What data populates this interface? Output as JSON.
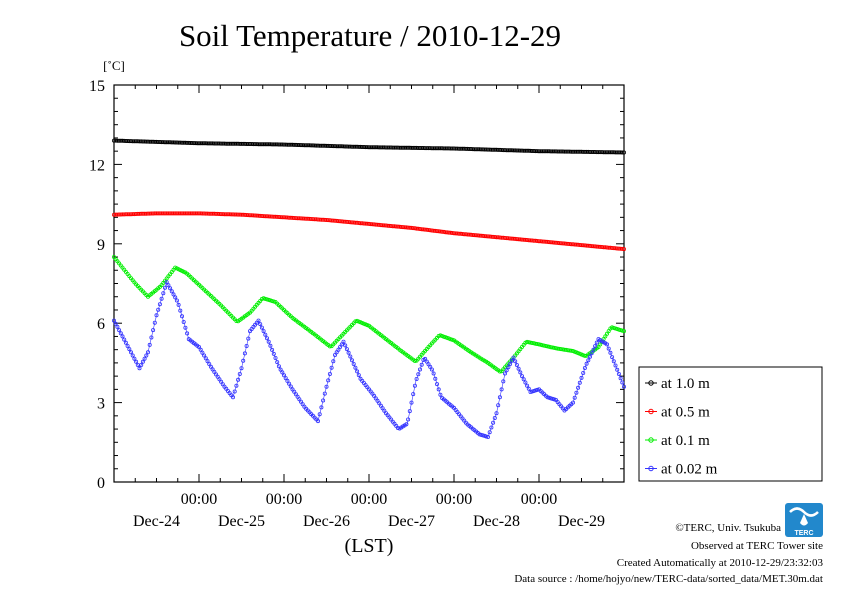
{
  "chart_data": {
    "type": "line",
    "title": "Soil Temperature / 2010-12-29",
    "ylabel": "[˚C]",
    "xlabel": "(LST)",
    "ylim": [
      0,
      15
    ],
    "y_ticks": [
      "0",
      "3",
      "6",
      "9",
      "12",
      "15"
    ],
    "xlim": [
      0,
      6
    ],
    "x_ticks": [
      {
        "x": 1,
        "time": "00:00",
        "date": "Dec-25"
      },
      {
        "x": 2,
        "time": "00:00",
        "date": "Dec-26"
      },
      {
        "x": 3,
        "time": "00:00",
        "date": "Dec-27"
      },
      {
        "x": 4,
        "time": "00:00",
        "date": "Dec-28"
      },
      {
        "x": 5,
        "time": "00:00",
        "date": "Dec-29"
      }
    ],
    "day_labels": [
      "Dec-24",
      "Dec-25",
      "Dec-26",
      "Dec-27",
      "Dec-28",
      "Dec-29"
    ],
    "grid": false,
    "legend_position": "bottom-right-outside",
    "series": [
      {
        "name": "at 1.0 m",
        "color": "#000000",
        "points": [
          [
            0,
            12.9
          ],
          [
            0.5,
            12.85
          ],
          [
            1,
            12.8
          ],
          [
            2,
            12.75
          ],
          [
            3,
            12.65
          ],
          [
            4,
            12.6
          ],
          [
            5,
            12.5
          ],
          [
            6,
            12.45
          ]
        ]
      },
      {
        "name": "at 0.5 m",
        "color": "#ff0000",
        "points": [
          [
            0,
            10.1
          ],
          [
            0.5,
            10.15
          ],
          [
            1,
            10.15
          ],
          [
            1.5,
            10.1
          ],
          [
            2,
            10.0
          ],
          [
            2.5,
            9.9
          ],
          [
            3,
            9.75
          ],
          [
            3.5,
            9.6
          ],
          [
            4,
            9.4
          ],
          [
            4.5,
            9.25
          ],
          [
            5,
            9.1
          ],
          [
            5.5,
            8.95
          ],
          [
            6,
            8.8
          ]
        ]
      },
      {
        "name": "at 0.1 m",
        "color": "#00ee00",
        "points": [
          [
            0,
            8.5
          ],
          [
            0.25,
            7.5
          ],
          [
            0.4,
            7.0
          ],
          [
            0.55,
            7.4
          ],
          [
            0.72,
            8.1
          ],
          [
            0.85,
            7.9
          ],
          [
            1.05,
            7.3
          ],
          [
            1.25,
            6.7
          ],
          [
            1.45,
            6.05
          ],
          [
            1.6,
            6.4
          ],
          [
            1.75,
            6.95
          ],
          [
            1.9,
            6.8
          ],
          [
            2.1,
            6.2
          ],
          [
            2.35,
            5.6
          ],
          [
            2.55,
            5.1
          ],
          [
            2.7,
            5.6
          ],
          [
            2.85,
            6.1
          ],
          [
            3.0,
            5.9
          ],
          [
            3.2,
            5.4
          ],
          [
            3.4,
            4.9
          ],
          [
            3.55,
            4.55
          ],
          [
            3.7,
            5.1
          ],
          [
            3.83,
            5.55
          ],
          [
            4.0,
            5.35
          ],
          [
            4.2,
            4.9
          ],
          [
            4.4,
            4.5
          ],
          [
            4.55,
            4.15
          ],
          [
            4.7,
            4.7
          ],
          [
            4.85,
            5.3
          ],
          [
            5.0,
            5.2
          ],
          [
            5.2,
            5.05
          ],
          [
            5.4,
            4.95
          ],
          [
            5.55,
            4.75
          ],
          [
            5.7,
            5.1
          ],
          [
            5.85,
            5.85
          ],
          [
            6.0,
            5.7
          ]
        ]
      },
      {
        "name": "at 0.02 m",
        "color": "#3333ff",
        "points": [
          [
            0,
            6.1
          ],
          [
            0.15,
            5.2
          ],
          [
            0.3,
            4.3
          ],
          [
            0.4,
            4.9
          ],
          [
            0.5,
            6.3
          ],
          [
            0.62,
            7.55
          ],
          [
            0.75,
            6.8
          ],
          [
            0.88,
            5.4
          ],
          [
            1.0,
            5.1
          ],
          [
            1.15,
            4.3
          ],
          [
            1.3,
            3.6
          ],
          [
            1.4,
            3.2
          ],
          [
            1.5,
            4.3
          ],
          [
            1.6,
            5.7
          ],
          [
            1.7,
            6.1
          ],
          [
            1.82,
            5.3
          ],
          [
            1.95,
            4.3
          ],
          [
            2.1,
            3.5
          ],
          [
            2.25,
            2.8
          ],
          [
            2.4,
            2.3
          ],
          [
            2.5,
            3.6
          ],
          [
            2.6,
            4.8
          ],
          [
            2.7,
            5.3
          ],
          [
            2.8,
            4.6
          ],
          [
            2.9,
            3.9
          ],
          [
            3.05,
            3.3
          ],
          [
            3.2,
            2.6
          ],
          [
            3.35,
            2.0
          ],
          [
            3.45,
            2.2
          ],
          [
            3.55,
            3.8
          ],
          [
            3.65,
            4.7
          ],
          [
            3.75,
            4.2
          ],
          [
            3.85,
            3.2
          ],
          [
            4.0,
            2.8
          ],
          [
            4.15,
            2.2
          ],
          [
            4.3,
            1.8
          ],
          [
            4.4,
            1.7
          ],
          [
            4.5,
            2.6
          ],
          [
            4.6,
            4.1
          ],
          [
            4.7,
            4.7
          ],
          [
            4.8,
            4.0
          ],
          [
            4.9,
            3.4
          ],
          [
            5.0,
            3.5
          ],
          [
            5.1,
            3.2
          ],
          [
            5.2,
            3.1
          ],
          [
            5.3,
            2.7
          ],
          [
            5.4,
            3.0
          ],
          [
            5.55,
            4.4
          ],
          [
            5.7,
            5.4
          ],
          [
            5.8,
            5.2
          ],
          [
            5.9,
            4.4
          ],
          [
            6.0,
            3.6
          ]
        ]
      }
    ]
  },
  "credits": {
    "copyright": "©TERC, Univ. Tsukuba",
    "observed": "Observed at TERC Tower site",
    "created": "Created Automatically at 2010-12-29/23:32:03",
    "source": "Data source : /home/hojyo/new/TERC-data/sorted_data/MET.30m.dat",
    "logo_text": "TERC"
  }
}
